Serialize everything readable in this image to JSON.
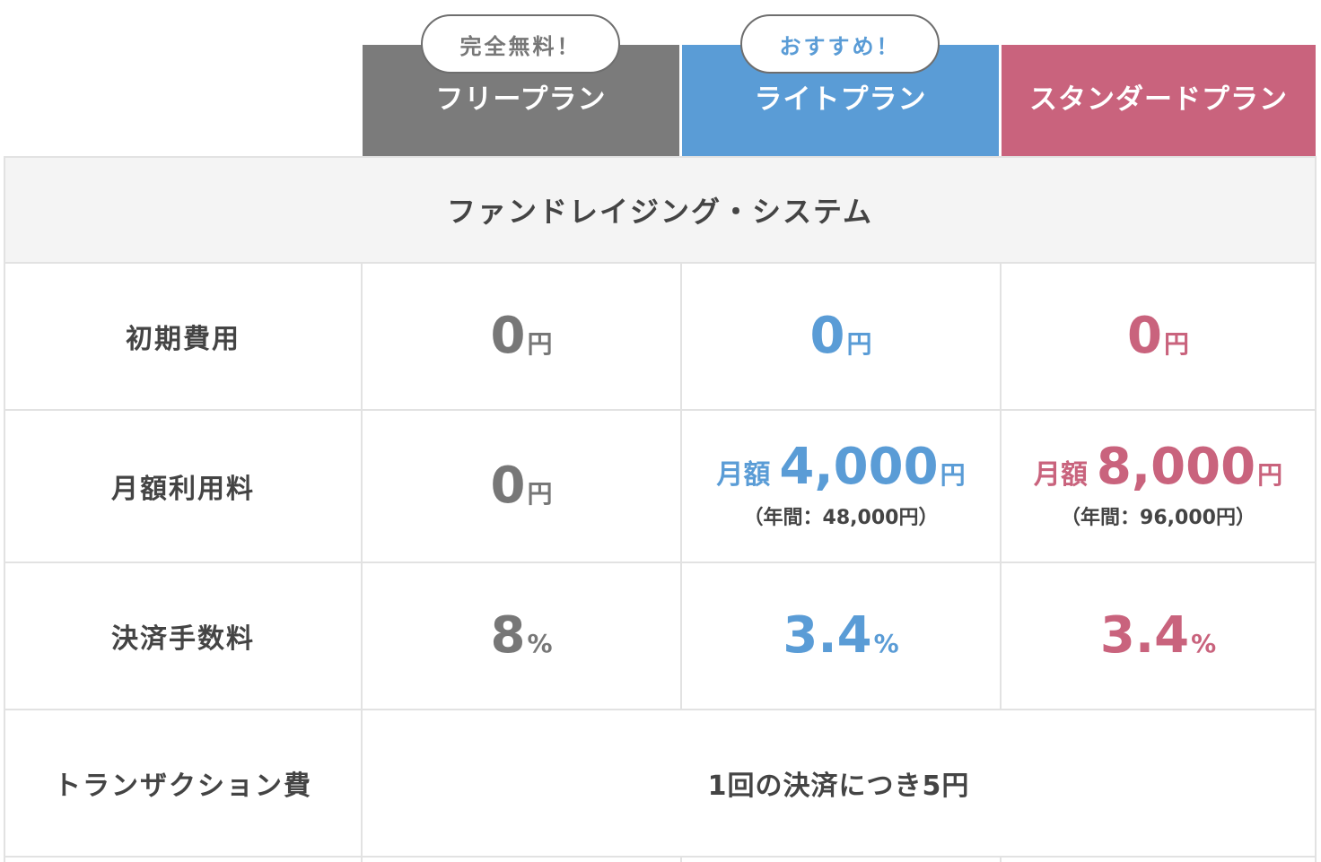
{
  "plans": [
    {
      "name": "フリープラン",
      "badge": "完全無料！",
      "color": "#7b7b7b"
    },
    {
      "name": "ライトプラン",
      "badge": "おすすめ！",
      "color": "#5a9cd6"
    },
    {
      "name": "スタンダードプラン",
      "badge": "",
      "color": "#c9637d"
    }
  ],
  "section_title": "ファンドレイジング・システム",
  "rows": {
    "initial": {
      "label": "初期費用",
      "free": {
        "value": "0",
        "unit": "円"
      },
      "lite": {
        "value": "0",
        "unit": "円"
      },
      "std": {
        "value": "0",
        "unit": "円"
      }
    },
    "monthly": {
      "label": "月額利用料",
      "free": {
        "value": "0",
        "unit": "円"
      },
      "lite": {
        "prefix": "月額",
        "value": "4,000",
        "unit": "円",
        "sub": "（年間：48,000円）"
      },
      "std": {
        "prefix": "月額",
        "value": "8,000",
        "unit": "円",
        "sub": "（年間：96,000円）"
      }
    },
    "fee": {
      "label": "決済手数料",
      "free": {
        "value": "8",
        "unit": "%"
      },
      "lite": {
        "value": "3.4",
        "unit": "%"
      },
      "std": {
        "value": "3.4",
        "unit": "%"
      }
    },
    "transaction": {
      "label": "トランザクション費",
      "all": "1回の決済につき5円"
    }
  }
}
